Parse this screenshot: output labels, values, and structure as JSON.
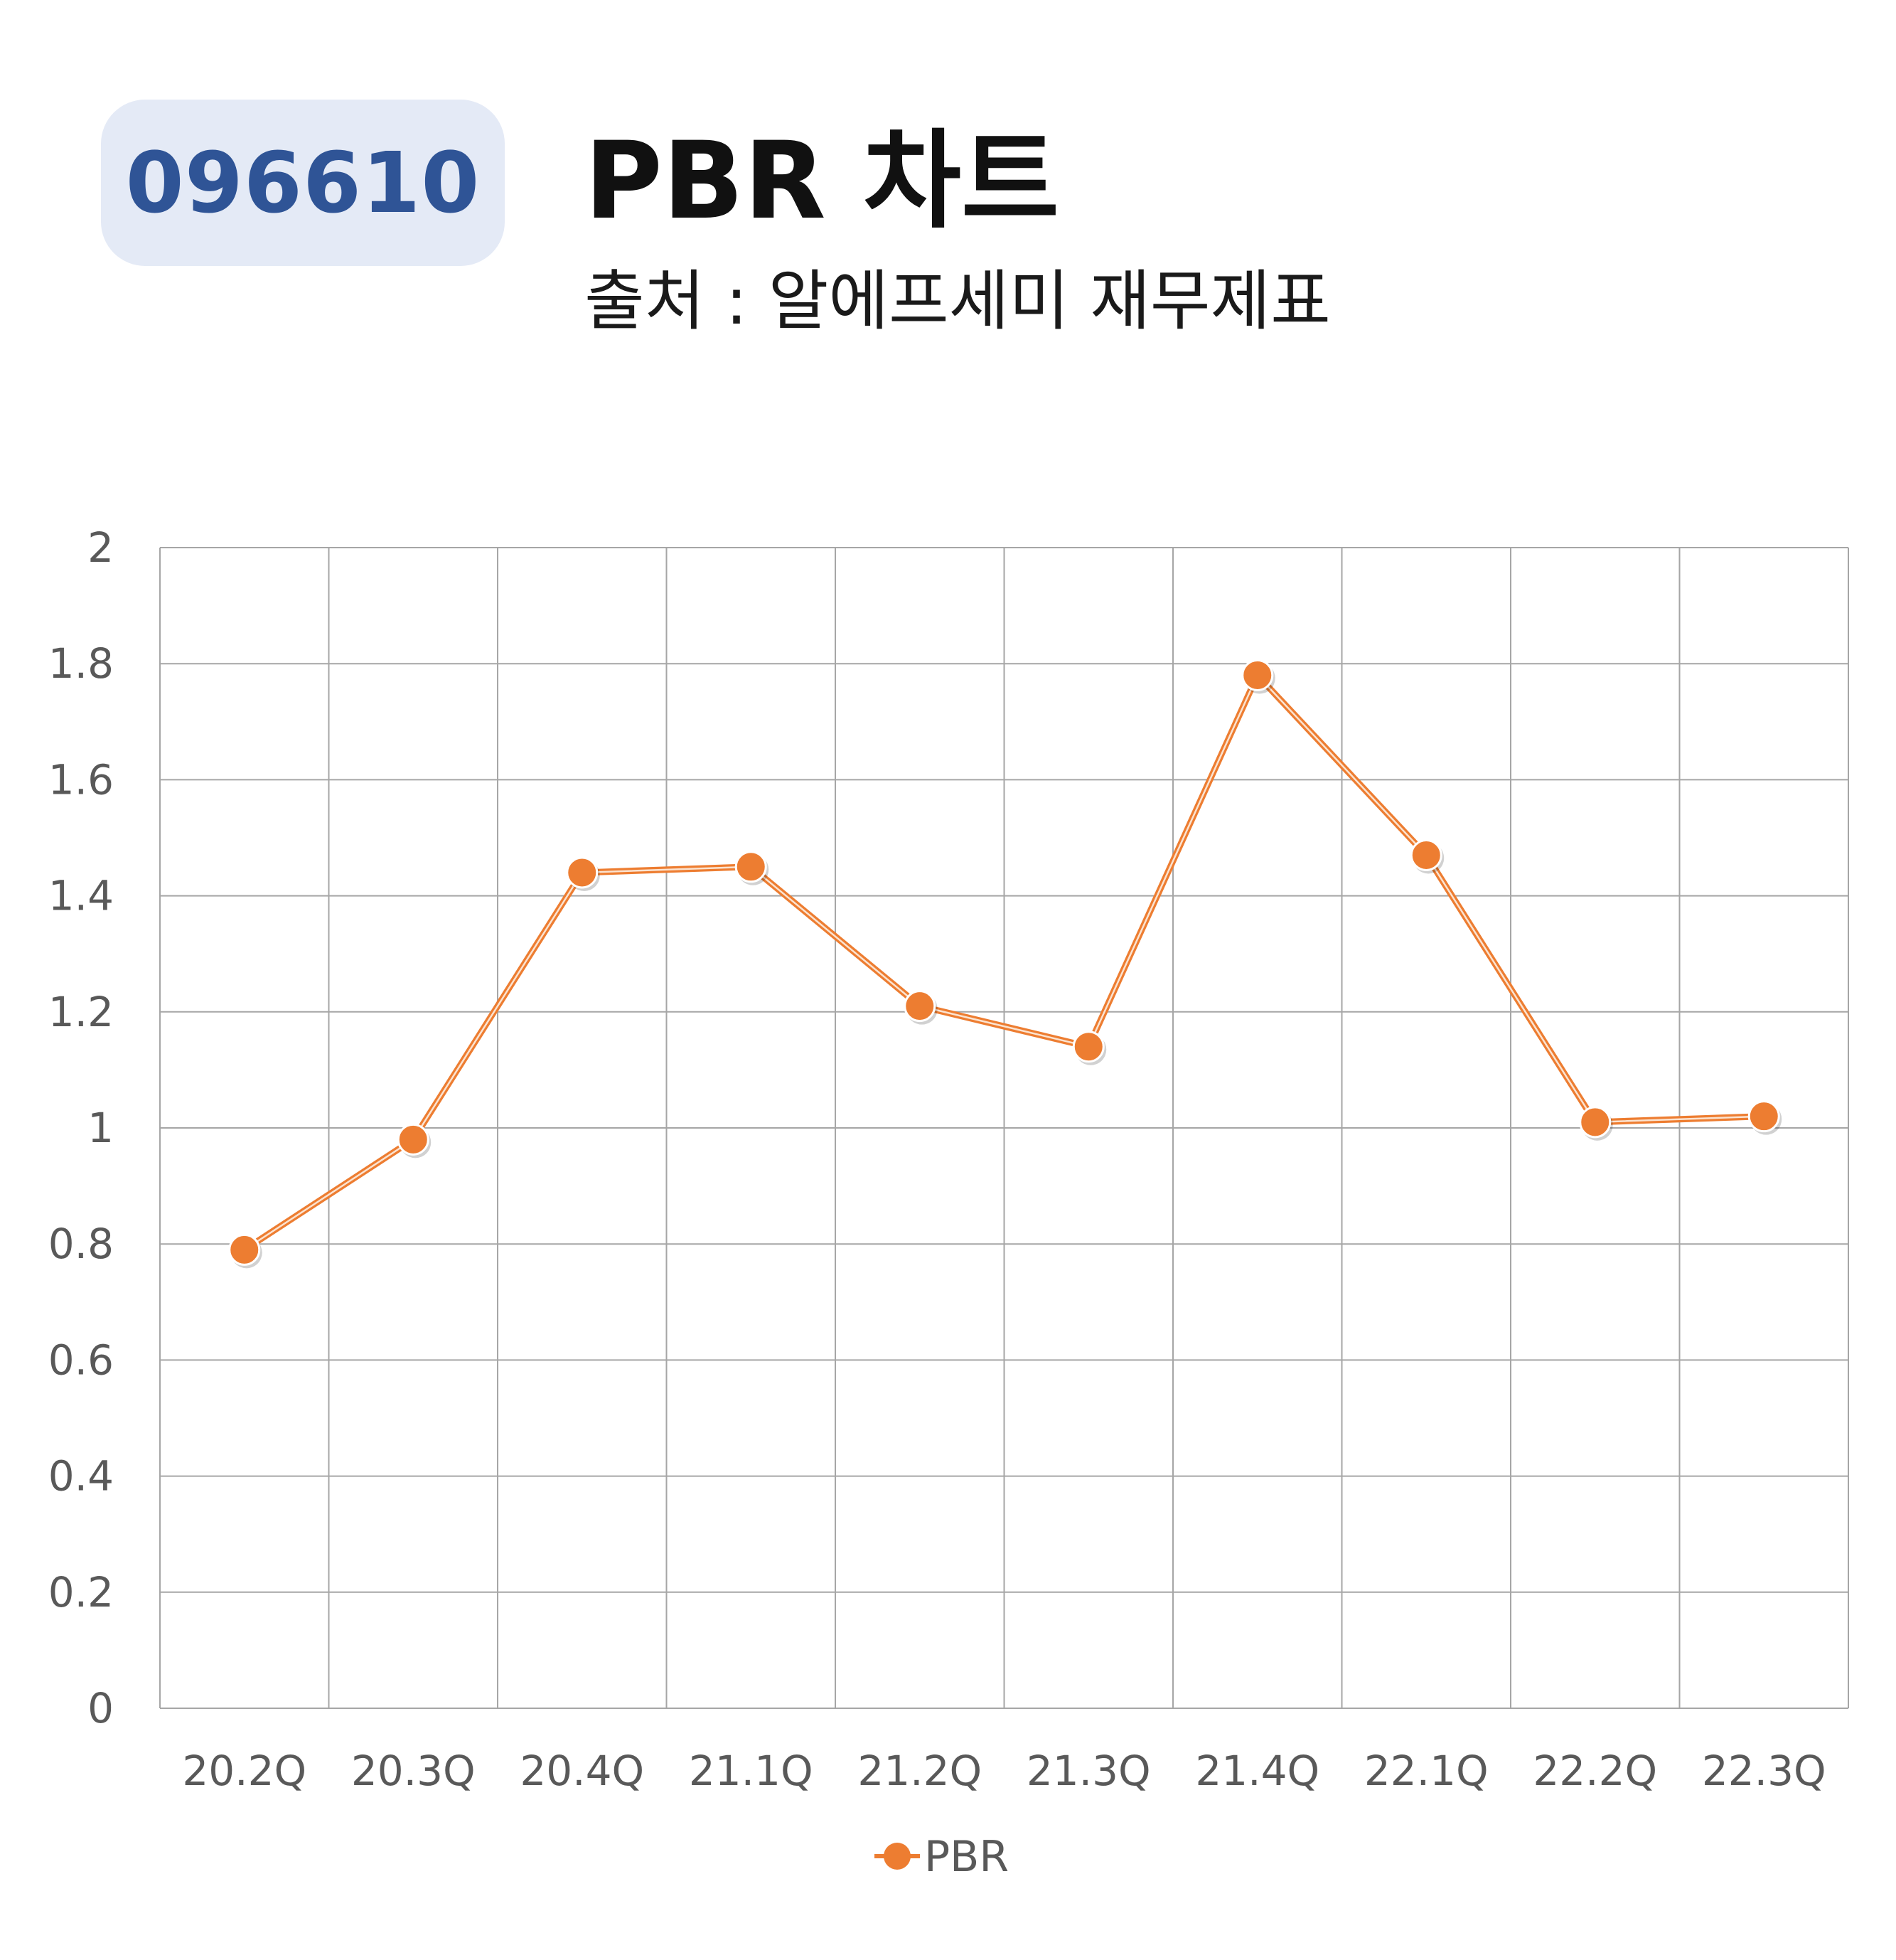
{
  "header": {
    "code": "096610",
    "title": "PBR 차트",
    "subtitle": "출처 : 알에프세미 재무제표"
  },
  "colors": {
    "badge_bg": "#e4eaf6",
    "badge_text": "#2f5496",
    "series": "#ed7d31",
    "grid": "#a6a6a6"
  },
  "chart_data": {
    "type": "line",
    "categories": [
      "20.2Q",
      "20.3Q",
      "20.4Q",
      "21.1Q",
      "21.2Q",
      "21.3Q",
      "21.4Q",
      "22.1Q",
      "22.2Q",
      "22.3Q"
    ],
    "series": [
      {
        "name": "PBR",
        "values": [
          0.79,
          0.98,
          1.44,
          1.45,
          1.21,
          1.14,
          1.78,
          1.47,
          1.01,
          1.02
        ]
      }
    ],
    "yticks": [
      "0",
      "0.2",
      "0.4",
      "0.6",
      "0.8",
      "1",
      "1.2",
      "1.4",
      "1.6",
      "1.8",
      "2"
    ],
    "ylim": [
      0,
      2
    ],
    "grid": true,
    "legend": "bottom"
  }
}
